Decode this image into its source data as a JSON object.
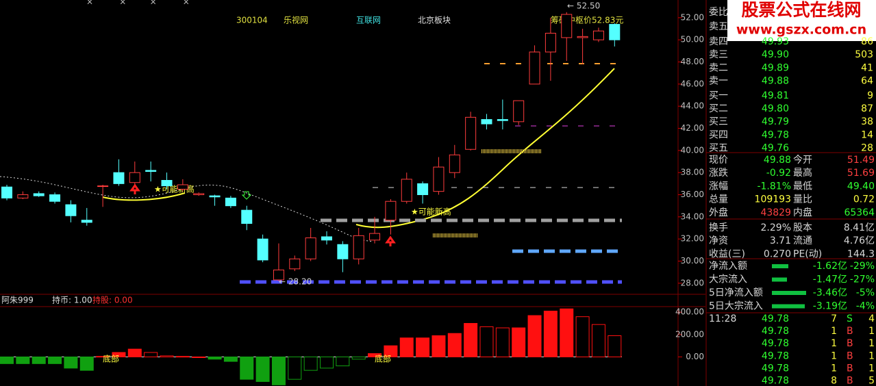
{
  "watermark": {
    "title": "股票公式在线网",
    "url": "www.gszx.com.cn"
  },
  "header": {
    "code": "300104",
    "name": "乐视网",
    "industry": "互联网",
    "region": "北京板块",
    "chip_center": "筹码中枢价52.83元"
  },
  "chart_data": [
    {
      "type": "candlestick",
      "candles": [
        {
          "open": 36.7,
          "high": 36.9,
          "low": 35.5,
          "close": 35.7
        },
        {
          "open": 35.7,
          "high": 36.3,
          "low": 35.6,
          "close": 36.0
        },
        {
          "open": 36.1,
          "high": 36.3,
          "low": 35.8,
          "close": 35.9
        },
        {
          "open": 36.0,
          "high": 36.2,
          "low": 35.2,
          "close": 35.4
        },
        {
          "open": 35.1,
          "high": 35.5,
          "low": 33.5,
          "close": 34.1
        },
        {
          "open": 33.7,
          "high": 34.8,
          "low": 33.2,
          "close": 33.5
        },
        {
          "open": 36.8,
          "high": 36.9,
          "low": 34.9,
          "close": 36.8
        },
        {
          "open": 38.0,
          "high": 39.2,
          "low": 36.8,
          "close": 37.0
        },
        {
          "open": 37.1,
          "high": 39.0,
          "low": 36.9,
          "close": 38.0
        },
        {
          "open": 38.2,
          "high": 39.0,
          "low": 37.2,
          "close": 38.1
        },
        {
          "open": 37.3,
          "high": 38.0,
          "low": 36.5,
          "close": 36.8
        },
        {
          "open": 36.5,
          "high": 37.4,
          "low": 36.3,
          "close": 36.9
        },
        {
          "open": 36.0,
          "high": 36.2,
          "low": 35.9,
          "close": 36.1
        },
        {
          "open": 35.9,
          "high": 36.0,
          "low": 35.0,
          "close": 35.8
        },
        {
          "open": 35.7,
          "high": 35.9,
          "low": 34.8,
          "close": 35.0
        },
        {
          "open": 34.6,
          "high": 35.0,
          "low": 32.8,
          "close": 33.4
        },
        {
          "open": 32.0,
          "high": 32.4,
          "low": 29.9,
          "close": 30.1
        },
        {
          "open": 28.3,
          "high": 31.6,
          "low": 28.2,
          "close": 29.2
        },
        {
          "open": 29.3,
          "high": 30.5,
          "low": 29.1,
          "close": 30.2
        },
        {
          "open": 30.2,
          "high": 33.0,
          "low": 30.0,
          "close": 32.1
        },
        {
          "open": 32.2,
          "high": 32.7,
          "low": 31.5,
          "close": 31.9
        },
        {
          "open": 31.5,
          "high": 31.8,
          "low": 29.0,
          "close": 30.2
        },
        {
          "open": 30.2,
          "high": 33.0,
          "low": 29.7,
          "close": 32.3
        },
        {
          "open": 31.9,
          "high": 34.0,
          "low": 31.6,
          "close": 32.5
        },
        {
          "open": 33.7,
          "high": 35.6,
          "low": 32.4,
          "close": 35.4
        },
        {
          "open": 35.4,
          "high": 38.0,
          "low": 35.2,
          "close": 37.4
        },
        {
          "open": 37.0,
          "high": 37.2,
          "low": 35.2,
          "close": 36.0
        },
        {
          "open": 36.3,
          "high": 39.4,
          "low": 36.0,
          "close": 38.5
        },
        {
          "open": 38.0,
          "high": 40.5,
          "low": 37.5,
          "close": 39.6
        },
        {
          "open": 40.1,
          "high": 43.5,
          "low": 40.0,
          "close": 43.0
        },
        {
          "open": 42.8,
          "high": 43.3,
          "low": 41.9,
          "close": 42.4
        },
        {
          "open": 42.8,
          "high": 44.6,
          "low": 41.9,
          "close": 42.7
        },
        {
          "open": 42.6,
          "high": 44.5,
          "low": 42.3,
          "close": 44.5
        },
        {
          "open": 46.0,
          "high": 49.5,
          "low": 46.0,
          "close": 48.9
        },
        {
          "open": 48.9,
          "high": 52.0,
          "low": 46.3,
          "close": 50.6
        },
        {
          "open": 50.2,
          "high": 52.5,
          "low": 48.1,
          "close": 52.3
        },
        {
          "open": 50.2,
          "high": 51.0,
          "low": 47.8,
          "close": 50.3
        },
        {
          "open": 50.0,
          "high": 51.1,
          "low": 49.8,
          "close": 50.8
        },
        {
          "open": 51.4,
          "high": 51.5,
          "low": 49.4,
          "close": 50.0
        }
      ],
      "ylim": [
        27.0,
        53.6
      ],
      "yticks": [
        {
          "value": 52,
          "label": "52.00"
        },
        {
          "value": 50,
          "label": "50.00"
        },
        {
          "value": 48,
          "label": "48.00"
        },
        {
          "value": 46,
          "label": "46.00"
        },
        {
          "value": 44,
          "label": "44.00"
        },
        {
          "value": 42,
          "label": "42.00"
        },
        {
          "value": 40,
          "label": "40.00"
        },
        {
          "value": 38,
          "label": "38.00"
        },
        {
          "value": 36,
          "label": "36.00"
        },
        {
          "value": 34,
          "label": "34.00"
        },
        {
          "value": 32,
          "label": "32.00"
        },
        {
          "value": 30,
          "label": "30.00"
        },
        {
          "value": 28,
          "label": "28.00"
        }
      ],
      "high_label": "← 52.50",
      "low_label": "← 28.20",
      "signal": "★可能新高"
    },
    {
      "type": "bar",
      "title": "阿朱999",
      "hold_cash": "持币: 1.00",
      "hold_stock": "持股: 0.00",
      "signal": "底部",
      "values": [
        -60,
        -60,
        -60,
        -60,
        -100,
        -120,
        5,
        40,
        70,
        40,
        10,
        5,
        0,
        -20,
        -40,
        -200,
        -220,
        -250,
        -200,
        -120,
        -100,
        -80,
        -20,
        30,
        100,
        170,
        170,
        190,
        210,
        300,
        270,
        260,
        260,
        370,
        410,
        430,
        360,
        290,
        190
      ],
      "ylim": [
        -260,
        450
      ],
      "yticks": [
        {
          "value": 400,
          "label": "400.00"
        },
        {
          "value": 200,
          "label": "200.00"
        },
        {
          "value": 0,
          "label": "0.00"
        }
      ]
    }
  ],
  "panel": {
    "header": [
      "委比",
      "卖五"
    ],
    "book": [
      [
        "卖四",
        "49.93",
        "86"
      ],
      [
        "卖三",
        "49.90",
        "503"
      ],
      [
        "卖二",
        "49.89",
        "41"
      ],
      [
        "卖一",
        "49.88",
        "64"
      ],
      [
        "买一",
        "49.81",
        "9"
      ],
      [
        "买二",
        "49.80",
        "87"
      ],
      [
        "买三",
        "49.79",
        "38"
      ],
      [
        "买四",
        "49.78",
        "14"
      ],
      [
        "买五",
        "49.76",
        "28"
      ]
    ],
    "stats": [
      [
        "现价",
        "49.88",
        "今开",
        "51.49"
      ],
      [
        "涨跌",
        "-0.92",
        "最高",
        "51.69"
      ],
      [
        "涨幅",
        "-1.81%",
        "最低",
        "49.40"
      ],
      [
        "总量",
        "109193",
        "量比",
        "0.72"
      ],
      [
        "外盘",
        "43829",
        "内盘",
        "65364"
      ],
      [
        "换手",
        "2.29%",
        "股本",
        "8.41亿"
      ],
      [
        "净资",
        "3.71",
        "流通",
        "4.76亿"
      ],
      [
        "收益(三)",
        "0.270",
        "PE(动)",
        "144.3"
      ]
    ],
    "flows": [
      [
        "净流入额",
        "-1.62亿",
        "-29%"
      ],
      [
        "大宗流入",
        "-1.47亿",
        "-27%"
      ],
      [
        "5日净流入额",
        "-3.46亿",
        "-5%"
      ],
      [
        "5日大宗流入",
        "-3.19亿",
        "-4%"
      ]
    ],
    "ticks": [
      [
        "11:28",
        "49.78",
        "7",
        "S",
        "4"
      ],
      [
        "",
        "49.78",
        "1",
        "B",
        "1"
      ],
      [
        "",
        "49.78",
        "1",
        "B",
        "1"
      ],
      [
        "",
        "49.78",
        "1",
        "B",
        "1"
      ],
      [
        "",
        "49.78",
        "1",
        "B",
        "1"
      ],
      [
        "",
        "49.78",
        "8",
        "B",
        "5"
      ]
    ]
  }
}
